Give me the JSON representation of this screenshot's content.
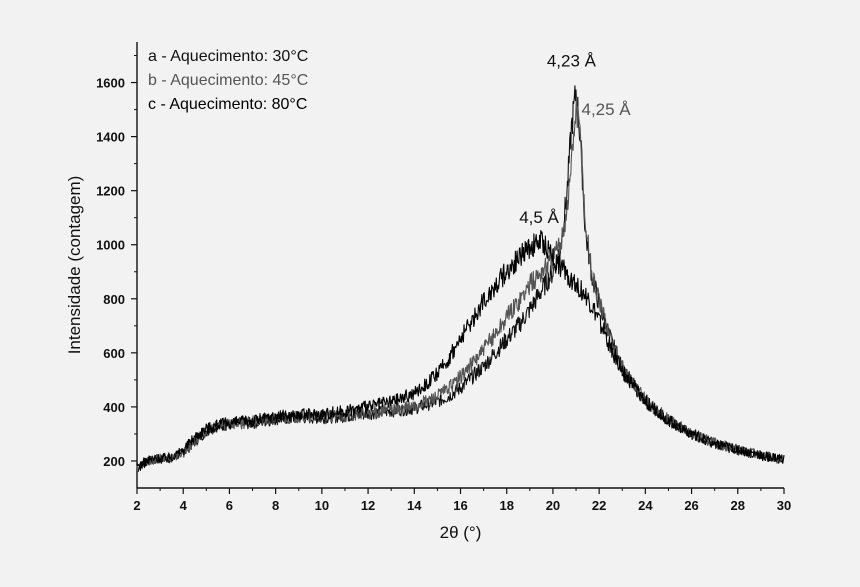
{
  "chart_data": {
    "type": "line",
    "xlabel": "2θ (°)",
    "ylabel": "Intensidade (contagem)",
    "xlim": [
      2,
      30
    ],
    "ylim": [
      100,
      1750
    ],
    "xticks": [
      2,
      4,
      6,
      8,
      10,
      12,
      14,
      16,
      18,
      20,
      22,
      24,
      26,
      28,
      30
    ],
    "yticks": [
      200,
      400,
      600,
      800,
      1000,
      1200,
      1400,
      1600
    ],
    "legend_position": "top-left",
    "series": [
      {
        "name": "a - Aquecimento: 30°C",
        "color": "#111111",
        "x": [
          2,
          2.5,
          3,
          3.5,
          4,
          4.5,
          5,
          5.5,
          6,
          7,
          8,
          9,
          10,
          11,
          12,
          13,
          14,
          15,
          15.5,
          16,
          16.5,
          17,
          17.5,
          18,
          18.5,
          19,
          19.5,
          20,
          20.3,
          20.6,
          20.8,
          21,
          21.2,
          21.4,
          21.7,
          22,
          22.5,
          23,
          24,
          25,
          26,
          27,
          28,
          29,
          30
        ],
        "y": [
          170,
          200,
          205,
          210,
          230,
          270,
          310,
          330,
          335,
          340,
          355,
          360,
          360,
          365,
          375,
          385,
          395,
          420,
          440,
          470,
          510,
          550,
          600,
          650,
          700,
          760,
          830,
          900,
          980,
          1180,
          1430,
          1570,
          1380,
          1050,
          880,
          780,
          650,
          540,
          420,
          350,
          300,
          265,
          240,
          220,
          205
        ]
      },
      {
        "name": "b - Aquecimento: 45°C",
        "color": "#555555",
        "x": [
          2,
          2.5,
          3,
          3.5,
          4,
          4.5,
          5,
          5.5,
          6,
          7,
          8,
          9,
          10,
          11,
          12,
          13,
          14,
          15,
          15.5,
          16,
          16.5,
          17,
          17.5,
          18,
          18.5,
          19,
          19.5,
          20,
          20.3,
          20.6,
          20.8,
          21,
          21.2,
          21.4,
          21.7,
          22,
          22.5,
          23,
          24,
          25,
          26,
          27,
          28,
          29,
          30
        ],
        "y": [
          175,
          200,
          210,
          212,
          232,
          272,
          312,
          332,
          337,
          345,
          358,
          362,
          362,
          368,
          378,
          390,
          400,
          440,
          470,
          510,
          560,
          610,
          670,
          730,
          790,
          850,
          900,
          950,
          1000,
          1120,
          1300,
          1510,
          1400,
          1080,
          890,
          790,
          655,
          545,
          425,
          352,
          302,
          267,
          242,
          222,
          207
        ]
      },
      {
        "name": "c - Aquecimento: 80°C",
        "color": "#000000",
        "x": [
          2,
          2.5,
          3,
          3.5,
          4,
          4.5,
          5,
          5.5,
          6,
          7,
          8,
          9,
          10,
          11,
          12,
          13,
          14,
          15,
          15.5,
          16,
          16.5,
          17,
          17.5,
          18,
          18.5,
          19,
          19.5,
          20,
          20.5,
          21,
          21.5,
          22,
          22.5,
          23,
          24,
          25,
          26,
          27,
          28,
          29,
          30
        ],
        "y": [
          180,
          205,
          210,
          215,
          240,
          290,
          320,
          335,
          340,
          350,
          365,
          370,
          375,
          385,
          400,
          420,
          450,
          520,
          580,
          650,
          720,
          790,
          850,
          900,
          950,
          990,
          1010,
          960,
          900,
          860,
          800,
          720,
          620,
          530,
          420,
          350,
          300,
          265,
          240,
          220,
          205
        ]
      }
    ],
    "annotations": [
      {
        "text": "4,23 Å",
        "x": 20.8,
        "y": 1660,
        "color": "#111111"
      },
      {
        "text": "4,25 Å",
        "x": 22.3,
        "y": 1480,
        "color": "#555555"
      },
      {
        "text": "4,5 Å",
        "x": 19.4,
        "y": 1080,
        "color": "#111111"
      }
    ]
  }
}
